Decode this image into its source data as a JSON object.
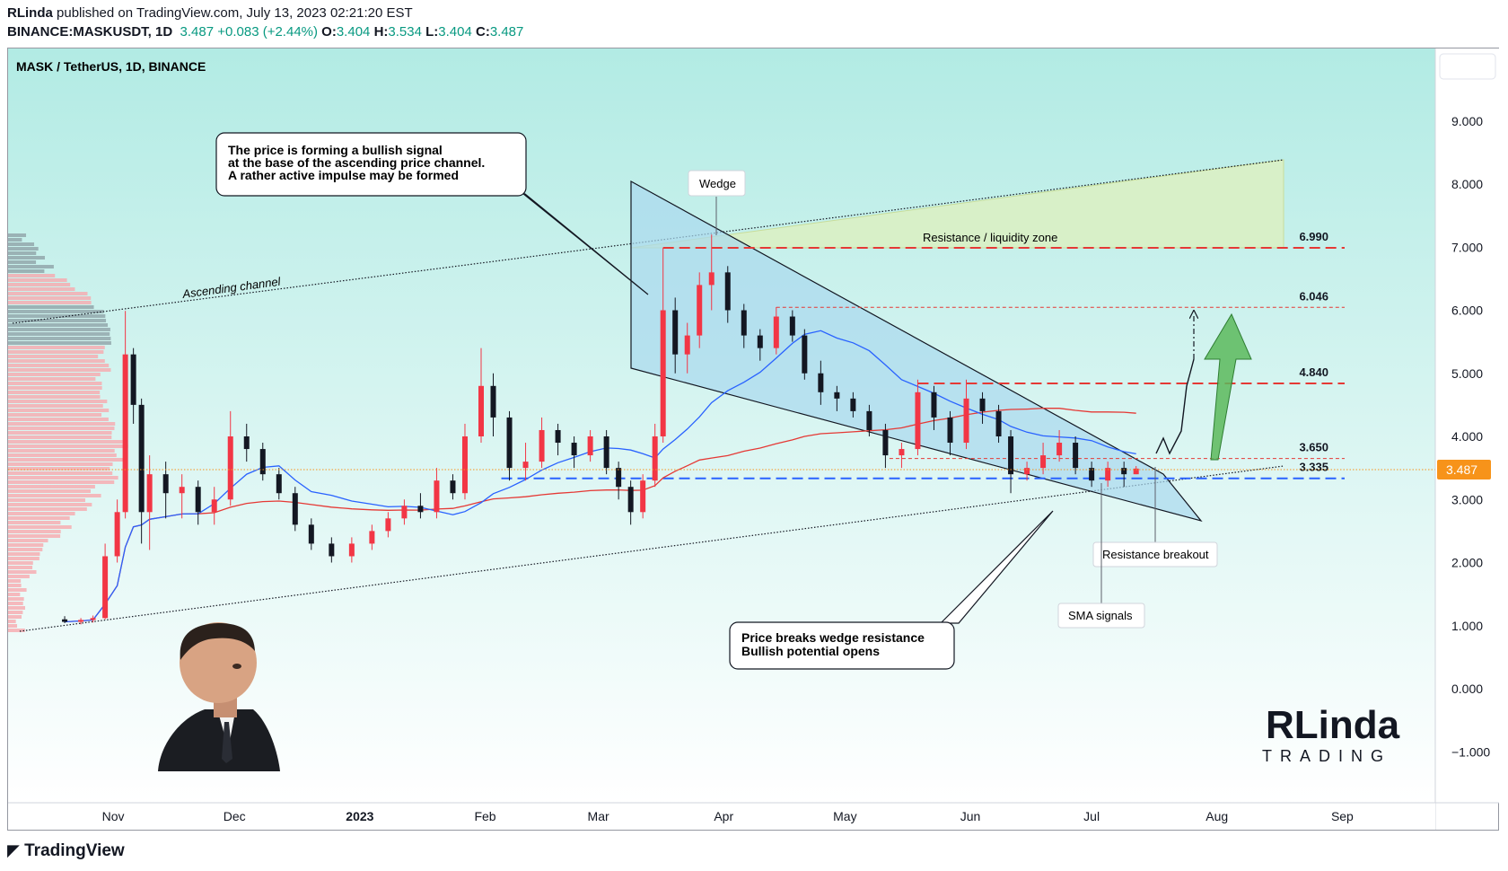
{
  "header": {
    "author": "RLinda",
    "published": "published on TradingView.com, July 13, 2023 02:21:20 EST",
    "symbol": "BINANCE:MASKUSDT, 1D",
    "last": "3.487",
    "change": "+0.083 (+2.44%)",
    "o_label": "O:",
    "o": "3.404",
    "h_label": "H:",
    "h": "3.534",
    "l_label": "L:",
    "l": "3.404",
    "c_label": "C:",
    "c": "3.487"
  },
  "chart_title": "MASK / TetherUS, 1D, BINANCE",
  "price_axis": {
    "ticks": [
      "9.000",
      "8.000",
      "7.000",
      "6.000",
      "5.000",
      "4.000",
      "3.000",
      "2.000",
      "1.000",
      "0.000",
      "−1.000"
    ],
    "tick_values": [
      9,
      8,
      7,
      6,
      5,
      4,
      3,
      2,
      1,
      0,
      -1
    ],
    "last_price_label": "3.487",
    "last_price_color": "#f7931a"
  },
  "time_axis": {
    "labels": [
      "Nov",
      "Dec",
      "2023",
      "Feb",
      "Mar",
      "Apr",
      "May",
      "Jun",
      "Jul",
      "Aug",
      "Sep"
    ],
    "label_dates": [
      "2022-11-01",
      "2022-12-01",
      "2023-01-01",
      "2023-02-01",
      "2023-03-01",
      "2023-04-01",
      "2023-05-01",
      "2023-06-01",
      "2023-07-01",
      "2023-08-01",
      "2023-09-01"
    ],
    "bold_label": "2023"
  },
  "levels": [
    {
      "label": "6.990",
      "value": 6.99,
      "color": "#e53935"
    },
    {
      "label": "6.046",
      "value": 6.046,
      "color": "#e53935"
    },
    {
      "label": "4.840",
      "value": 4.84,
      "color": "#e53935"
    },
    {
      "label": "3.650",
      "value": 3.65,
      "color": "#e53935"
    },
    {
      "label": "3.335",
      "value": 3.335,
      "color": "#2962ff"
    }
  ],
  "annotations": {
    "callout_top": [
      "The price is forming a bullish signal",
      "at the base of the ascending price channel.",
      "A rather active impulse may be formed"
    ],
    "callout_bottom": [
      "Price breaks wedge resistance",
      "Bullish potential opens"
    ],
    "wedge": "Wedge",
    "zone": "Resistance / liquidity zone",
    "channel": "Ascending channel",
    "breakout": "Resistance breakout",
    "sma": "SMA signals"
  },
  "logo": {
    "brand_top": "RLinda",
    "brand_bottom": "TRADING"
  },
  "colors": {
    "up": "#f23645",
    "down": "#131722",
    "sma_fast": "#2962ff",
    "sma_slow": "#e53935",
    "bg_top": "#b2ebe4",
    "bg_bottom": "#ffffff"
  },
  "chart_data": {
    "type": "candlestick",
    "title": "MASK / TetherUS, 1D, BINANCE",
    "ylim": [
      -1.5,
      10
    ],
    "xlim": [
      "2022-10-06",
      "2023-09-24"
    ],
    "ohlc": [
      [
        "2022-10-20",
        1.1,
        1.15,
        1.04,
        1.06
      ],
      [
        "2022-10-24",
        1.06,
        1.12,
        1.02,
        1.09
      ],
      [
        "2022-10-27",
        1.09,
        1.16,
        1.05,
        1.12
      ],
      [
        "2022-10-30",
        1.12,
        2.3,
        1.1,
        2.1
      ],
      [
        "2022-11-02",
        2.1,
        3.0,
        2.0,
        2.8
      ],
      [
        "2022-11-04",
        2.8,
        5.99,
        2.7,
        5.3
      ],
      [
        "2022-11-06",
        5.3,
        5.4,
        4.2,
        4.5
      ],
      [
        "2022-11-08",
        4.5,
        4.6,
        2.3,
        2.8
      ],
      [
        "2022-11-10",
        2.8,
        3.7,
        2.2,
        3.4
      ],
      [
        "2022-11-14",
        3.4,
        3.6,
        2.7,
        3.1
      ],
      [
        "2022-11-18",
        3.1,
        3.4,
        2.7,
        3.2
      ],
      [
        "2022-11-22",
        3.2,
        3.3,
        2.6,
        2.8
      ],
      [
        "2022-11-26",
        2.8,
        3.2,
        2.6,
        3.0
      ],
      [
        "2022-11-30",
        3.0,
        4.4,
        2.9,
        4.0
      ],
      [
        "2022-12-04",
        4.0,
        4.2,
        3.6,
        3.8
      ],
      [
        "2022-12-08",
        3.8,
        3.9,
        3.3,
        3.4
      ],
      [
        "2022-12-12",
        3.4,
        3.5,
        3.0,
        3.1
      ],
      [
        "2022-12-16",
        3.1,
        3.2,
        2.5,
        2.6
      ],
      [
        "2022-12-20",
        2.6,
        2.7,
        2.2,
        2.3
      ],
      [
        "2022-12-25",
        2.3,
        2.4,
        2.0,
        2.1
      ],
      [
        "2022-12-30",
        2.1,
        2.4,
        2.0,
        2.3
      ],
      [
        "2023-01-04",
        2.3,
        2.6,
        2.2,
        2.5
      ],
      [
        "2023-01-08",
        2.5,
        2.8,
        2.4,
        2.7
      ],
      [
        "2023-01-12",
        2.7,
        3.0,
        2.6,
        2.9
      ],
      [
        "2023-01-16",
        2.9,
        3.1,
        2.7,
        2.8
      ],
      [
        "2023-01-20",
        2.8,
        3.5,
        2.7,
        3.3
      ],
      [
        "2023-01-24",
        3.3,
        3.4,
        3.0,
        3.1
      ],
      [
        "2023-01-27",
        3.1,
        4.2,
        3.0,
        4.0
      ],
      [
        "2023-01-31",
        4.0,
        5.4,
        3.9,
        4.8
      ],
      [
        "2023-02-03",
        4.8,
        5.0,
        4.0,
        4.3
      ],
      [
        "2023-02-07",
        4.3,
        4.4,
        3.3,
        3.5
      ],
      [
        "2023-02-11",
        3.5,
        3.9,
        3.3,
        3.6
      ],
      [
        "2023-02-15",
        3.6,
        4.3,
        3.5,
        4.1
      ],
      [
        "2023-02-19",
        4.1,
        4.2,
        3.7,
        3.9
      ],
      [
        "2023-02-23",
        3.9,
        4.0,
        3.5,
        3.7
      ],
      [
        "2023-02-27",
        3.7,
        4.1,
        3.6,
        4.0
      ],
      [
        "2023-03-03",
        4.0,
        4.1,
        3.4,
        3.5
      ],
      [
        "2023-03-06",
        3.5,
        3.6,
        3.0,
        3.2
      ],
      [
        "2023-03-09",
        3.2,
        3.3,
        2.6,
        2.8
      ],
      [
        "2023-03-12",
        2.8,
        3.4,
        2.7,
        3.3
      ],
      [
        "2023-03-15",
        3.3,
        4.2,
        3.2,
        4.0
      ],
      [
        "2023-03-17",
        4.0,
        6.99,
        3.9,
        6.0
      ],
      [
        "2023-03-20",
        6.0,
        6.2,
        5.0,
        5.3
      ],
      [
        "2023-03-23",
        5.3,
        5.8,
        5.0,
        5.6
      ],
      [
        "2023-03-26",
        5.6,
        6.6,
        5.4,
        6.4
      ],
      [
        "2023-03-29",
        6.4,
        7.2,
        6.0,
        6.6
      ],
      [
        "2023-04-02",
        6.6,
        6.7,
        5.8,
        6.0
      ],
      [
        "2023-04-06",
        6.0,
        6.1,
        5.4,
        5.6
      ],
      [
        "2023-04-10",
        5.6,
        5.7,
        5.2,
        5.4
      ],
      [
        "2023-04-14",
        5.4,
        6.05,
        5.3,
        5.9
      ],
      [
        "2023-04-18",
        5.9,
        6.0,
        5.5,
        5.6
      ],
      [
        "2023-04-21",
        5.6,
        5.7,
        4.9,
        5.0
      ],
      [
        "2023-04-25",
        5.0,
        5.2,
        4.5,
        4.7
      ],
      [
        "2023-04-29",
        4.7,
        4.8,
        4.4,
        4.6
      ],
      [
        "2023-05-03",
        4.6,
        4.7,
        4.3,
        4.4
      ],
      [
        "2023-05-07",
        4.4,
        4.5,
        4.0,
        4.1
      ],
      [
        "2023-05-11",
        4.1,
        4.2,
        3.5,
        3.7
      ],
      [
        "2023-05-15",
        3.7,
        3.9,
        3.5,
        3.8
      ],
      [
        "2023-05-19",
        3.8,
        4.9,
        3.7,
        4.7
      ],
      [
        "2023-05-23",
        4.7,
        4.8,
        4.1,
        4.3
      ],
      [
        "2023-05-27",
        4.3,
        4.4,
        3.7,
        3.9
      ],
      [
        "2023-05-31",
        3.9,
        4.9,
        3.8,
        4.6
      ],
      [
        "2023-06-04",
        4.6,
        4.7,
        4.2,
        4.4
      ],
      [
        "2023-06-08",
        4.4,
        4.5,
        3.9,
        4.0
      ],
      [
        "2023-06-11",
        4.0,
        4.1,
        3.1,
        3.4
      ],
      [
        "2023-06-15",
        3.4,
        3.6,
        3.3,
        3.5
      ],
      [
        "2023-06-19",
        3.5,
        3.9,
        3.4,
        3.7
      ],
      [
        "2023-06-23",
        3.7,
        4.1,
        3.6,
        3.9
      ],
      [
        "2023-06-27",
        3.9,
        4.0,
        3.4,
        3.5
      ],
      [
        "2023-07-01",
        3.5,
        3.6,
        3.2,
        3.3
      ],
      [
        "2023-07-05",
        3.3,
        3.6,
        3.2,
        3.5
      ],
      [
        "2023-07-09",
        3.5,
        3.6,
        3.2,
        3.4
      ],
      [
        "2023-07-12",
        3.4,
        3.53,
        3.4,
        3.49
      ]
    ]
  }
}
